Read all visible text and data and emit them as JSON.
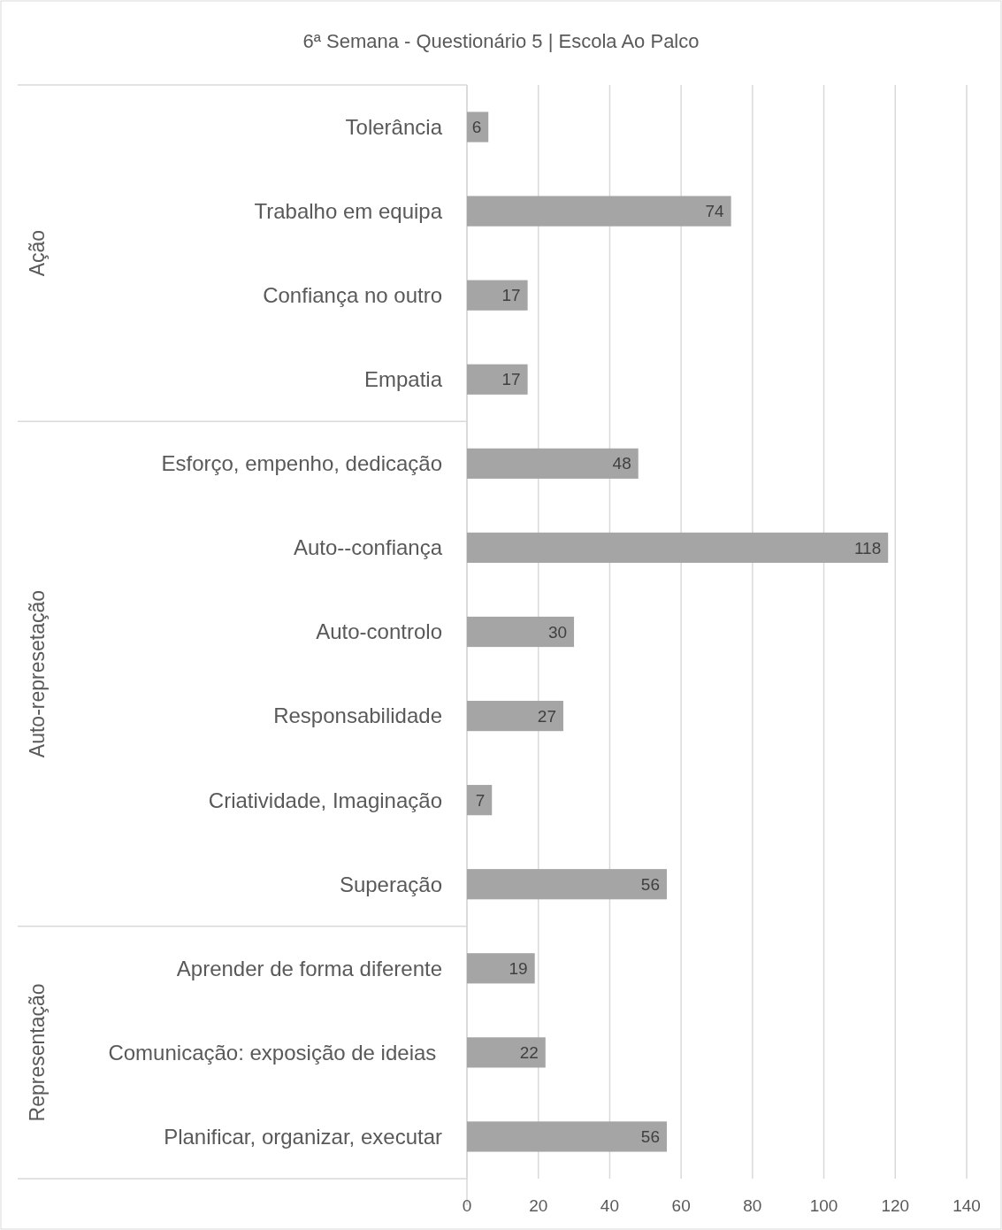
{
  "chart_data": {
    "type": "bar",
    "orientation": "horizontal",
    "title": "6ª Semana - Questionário 5 | Escola Ao Palco",
    "categories": [
      "Tolerância",
      "Trabalho em equipa",
      "Confiança no outro",
      "Empatia",
      "Esforço, empenho, dedicação",
      "Auto--confiança",
      "Auto-controlo",
      "Responsabilidade",
      "Criatividade, Imaginação",
      "Superação",
      "Aprender de forma diferente",
      "Comunicação: exposição de ideias ",
      "Planificar, organizar, executar"
    ],
    "values": [
      6,
      74,
      17,
      17,
      48,
      118,
      30,
      27,
      7,
      56,
      19,
      22,
      56
    ],
    "color": "#a5a5a5",
    "xlim": [
      0,
      140
    ],
    "xticks": [
      0,
      20,
      40,
      60,
      80,
      100,
      120,
      140
    ],
    "grid": "x",
    "data_labels": true,
    "annotations": [
      "Ação",
      "Auto-represetação",
      "Representação"
    ]
  }
}
